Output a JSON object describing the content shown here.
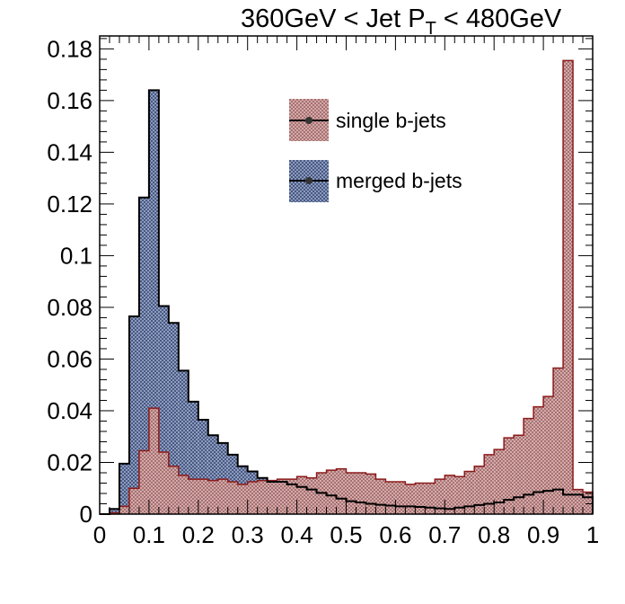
{
  "chart_data": {
    "type": "bar",
    "title": {
      "main": "360GeV < Jet P",
      "sub": "T",
      "tail": " < 480GeV"
    },
    "xlabel": "",
    "ylabel": "",
    "xlim": [
      0,
      1
    ],
    "ylim": [
      0,
      0.185
    ],
    "bin_width": 0.02,
    "xticks": [
      "0",
      "0.1",
      "0.2",
      "0.3",
      "0.4",
      "0.5",
      "0.6",
      "0.7",
      "0.8",
      "0.9",
      "1"
    ],
    "yticks": [
      "0",
      "0.02",
      "0.04",
      "0.06",
      "0.08",
      "0.1",
      "0.12",
      "0.14",
      "0.16",
      "0.18"
    ],
    "legend_position": "top-center",
    "series": [
      {
        "name": "merged b-jets",
        "color": "#000000",
        "fill": "#7d8db0",
        "values": [
          0,
          0.002,
          0.0195,
          0.0765,
          0.1225,
          0.164,
          0.0805,
          0.074,
          0.0555,
          0.0435,
          0.0365,
          0.0305,
          0.0275,
          0.023,
          0.0185,
          0.0165,
          0.014,
          0.0125,
          0.0125,
          0.0115,
          0.0105,
          0.0095,
          0.0082,
          0.0072,
          0.006,
          0.005,
          0.0045,
          0.004,
          0.0036,
          0.0033,
          0.003,
          0.003,
          0.0028,
          0.0025,
          0.0022,
          0.002,
          0.0025,
          0.003,
          0.0035,
          0.004,
          0.0045,
          0.0055,
          0.0065,
          0.0075,
          0.0085,
          0.009,
          0.0095,
          0.0075,
          0.0075,
          0.0065
        ]
      },
      {
        "name": "single b-jets",
        "color": "#8b1a1a",
        "fill": "#c9a0a0",
        "values": [
          0,
          0.0005,
          0.003,
          0.01,
          0.0245,
          0.041,
          0.024,
          0.0185,
          0.015,
          0.0135,
          0.0135,
          0.013,
          0.0135,
          0.0125,
          0.0115,
          0.0125,
          0.013,
          0.013,
          0.0135,
          0.0135,
          0.0145,
          0.014,
          0.016,
          0.017,
          0.0175,
          0.016,
          0.016,
          0.0155,
          0.0135,
          0.0125,
          0.0125,
          0.0115,
          0.012,
          0.012,
          0.0135,
          0.015,
          0.0145,
          0.0165,
          0.0185,
          0.023,
          0.025,
          0.0295,
          0.0305,
          0.037,
          0.0415,
          0.0455,
          0.0565,
          0.1755,
          0.0095,
          0.0085
        ]
      }
    ],
    "legend": {
      "single_label": "single b-jets",
      "merged_label": "merged b-jets"
    }
  }
}
